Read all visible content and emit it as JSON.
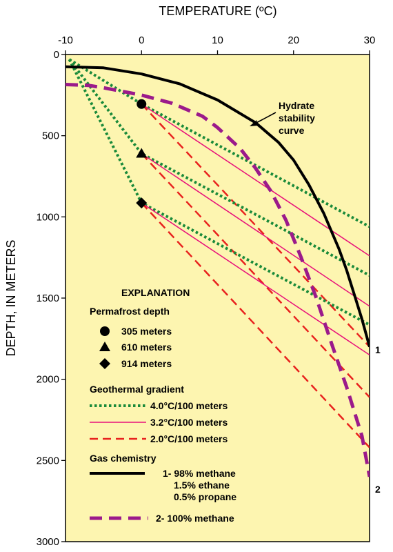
{
  "chart_data": {
    "type": "line",
    "x_axis": {
      "label": "TEMPERATURE (ºC)",
      "position": "top",
      "range": [
        -10,
        30
      ],
      "ticks": [
        -10,
        0,
        10,
        20,
        30
      ]
    },
    "y_axis": {
      "label": "DEPTH, IN METERS",
      "inverted": true,
      "range": [
        0,
        3000
      ],
      "ticks": [
        0,
        500,
        1000,
        1500,
        2000,
        2500,
        3000
      ]
    },
    "background": "#fdf5b0",
    "series": [
      {
        "name": "1- 98% methane",
        "role": "hydrate-stability",
        "color": "#000000",
        "dash": "solid",
        "points": [
          [
            -10,
            75
          ],
          [
            -5,
            82
          ],
          [
            0,
            120
          ],
          [
            5,
            180
          ],
          [
            10,
            280
          ],
          [
            15,
            420
          ],
          [
            18,
            540
          ],
          [
            20,
            650
          ],
          [
            22,
            800
          ],
          [
            24,
            980
          ],
          [
            26,
            1200
          ],
          [
            27,
            1330
          ],
          [
            28,
            1480
          ],
          [
            29,
            1630
          ],
          [
            30,
            1800
          ]
        ]
      },
      {
        "name": "2- 100% methane",
        "role": "hydrate-stability",
        "color": "#9b1a8b",
        "dash": "long-dash",
        "points": [
          [
            -10,
            185
          ],
          [
            -7,
            190
          ],
          [
            -5,
            205
          ],
          [
            0,
            250
          ],
          [
            4,
            300
          ],
          [
            8,
            380
          ],
          [
            10,
            450
          ],
          [
            13,
            580
          ],
          [
            15,
            700
          ],
          [
            17,
            840
          ],
          [
            19,
            1020
          ],
          [
            21,
            1250
          ],
          [
            23,
            1500
          ],
          [
            25,
            1780
          ],
          [
            27,
            2050
          ],
          [
            29,
            2350
          ],
          [
            30,
            2600
          ]
        ]
      },
      {
        "name": "4.0°C/100 meters",
        "group": "305",
        "color": "#1a8a3a",
        "dash": "dotted",
        "points": [
          [
            -9.5,
            30
          ],
          [
            0,
            305
          ],
          [
            30,
            1060
          ]
        ]
      },
      {
        "name": "3.2°C/100 meters",
        "group": "305",
        "color": "#e8107a",
        "dash": "solid-thin",
        "points": [
          [
            0,
            305
          ],
          [
            30,
            1240
          ]
        ]
      },
      {
        "name": "2.0°C/100 meters",
        "group": "305",
        "color": "#e8221e",
        "dash": "dashed",
        "points": [
          [
            0,
            305
          ],
          [
            30,
            1800
          ]
        ]
      },
      {
        "name": "4.0°C/100 meters",
        "group": "610",
        "color": "#1a8a3a",
        "dash": "dotted",
        "points": [
          [
            -9.5,
            30
          ],
          [
            0,
            610
          ],
          [
            30,
            1360
          ]
        ]
      },
      {
        "name": "3.2°C/100 meters",
        "group": "610",
        "color": "#e8107a",
        "dash": "solid-thin",
        "points": [
          [
            0,
            610
          ],
          [
            30,
            1550
          ]
        ]
      },
      {
        "name": "2.0°C/100 meters",
        "group": "610",
        "color": "#e8221e",
        "dash": "dashed",
        "points": [
          [
            0,
            610
          ],
          [
            30,
            2110
          ]
        ]
      },
      {
        "name": "4.0°C/100 meters",
        "group": "914",
        "color": "#1a8a3a",
        "dash": "dotted",
        "points": [
          [
            -9.5,
            30
          ],
          [
            0,
            914
          ],
          [
            30,
            1665
          ]
        ]
      },
      {
        "name": "3.2°C/100 meters",
        "group": "914",
        "color": "#e8107a",
        "dash": "solid-thin",
        "points": [
          [
            0,
            914
          ],
          [
            30,
            1850
          ]
        ]
      },
      {
        "name": "2.0°C/100 meters",
        "group": "914",
        "color": "#e8221e",
        "dash": "dashed",
        "points": [
          [
            0,
            914
          ],
          [
            30,
            2420
          ]
        ]
      }
    ],
    "markers": [
      {
        "shape": "circle",
        "x": 0,
        "y": 305
      },
      {
        "shape": "triangle",
        "x": 0,
        "y": 610
      },
      {
        "shape": "diamond",
        "x": 0,
        "y": 914
      }
    ],
    "annotations": [
      {
        "text": "Hydrate",
        "x": 22,
        "y": 310
      },
      {
        "text": "stability",
        "x": 22,
        "y": 390
      },
      {
        "text": "curve",
        "x": 22,
        "y": 470
      },
      {
        "text": "1",
        "x": 31.2,
        "y": 1830
      },
      {
        "text": "2",
        "x": 31.2,
        "y": 2680
      }
    ],
    "legend": {
      "title": "EXPLANATION",
      "permafrost_title": "Permafrost depth",
      "permafrost": [
        "305 meters",
        "610 meters",
        "914 meters"
      ],
      "gradient_title": "Geothermal gradient",
      "gradients": [
        "4.0°C/100 meters",
        "3.2°C/100 meters",
        "2.0°C/100 meters"
      ],
      "gas_title": "Gas chemistry",
      "gas1": [
        "1- 98% methane",
        "1.5% ethane",
        "0.5% propane"
      ],
      "gas2": "2- 100% methane"
    }
  }
}
